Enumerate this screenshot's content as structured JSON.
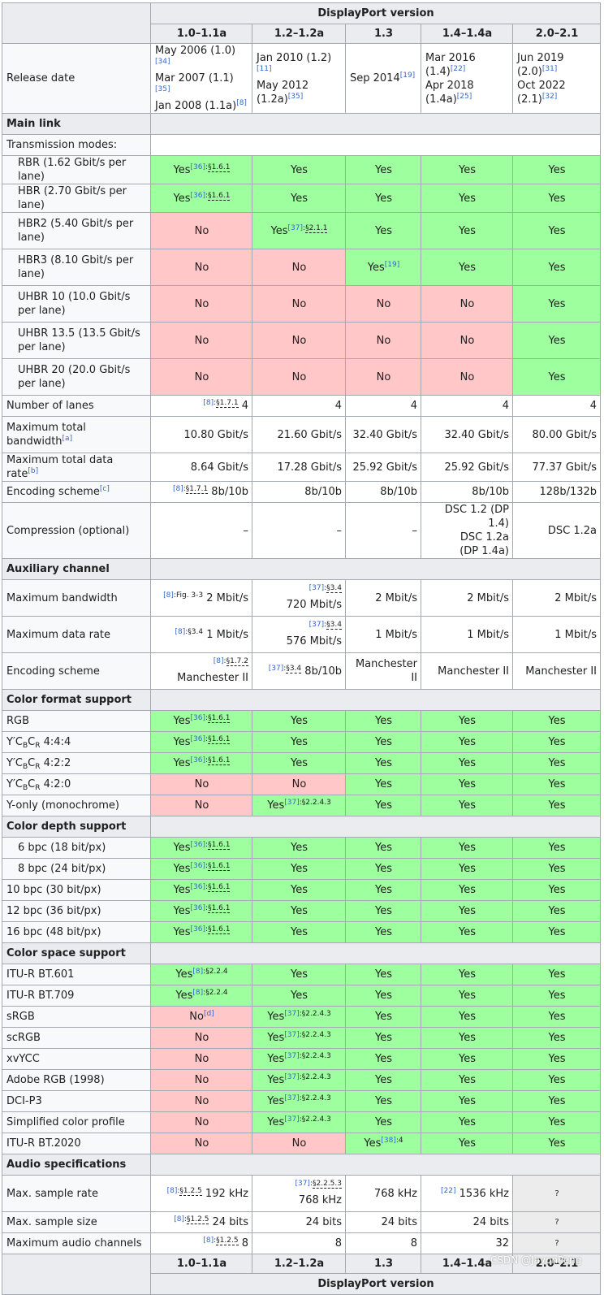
{
  "header": {
    "group": "DisplayPort version",
    "versions": [
      "1.0–1.1a",
      "1.2–1.2a",
      "1.3",
      "1.4–1.4a",
      "2.0–2.1"
    ]
  },
  "release": {
    "label": "Release date",
    "cells": [
      [
        {
          "t": "May 2006 (1.0)",
          "s": "[34]"
        },
        {
          "t": "Mar 2007 (1.1)",
          "s": "[35]"
        },
        {
          "t": "Jan 2008 (1.1a)",
          "s": "[8]"
        }
      ],
      [
        {
          "t": "Jan 2010 (1.2)",
          "s": "[11]"
        },
        {
          "t": "May 2012"
        },
        {
          "t": "(1.2a)",
          "s": "[35]"
        }
      ],
      [
        {
          "t": "Sep 2014",
          "s": "[19]"
        }
      ],
      [
        {
          "t": "Mar 2016"
        },
        {
          "t": "(1.4)",
          "s": "[22]"
        },
        {
          "t": "Apr 2018"
        },
        {
          "t": "(1.4a)",
          "s": "[25]"
        }
      ],
      [
        {
          "t": "Jun 2019"
        },
        {
          "t": "(2.0)",
          "s": "[31]"
        },
        {
          "t": "Oct 2022"
        },
        {
          "t": "(2.1)",
          "s": "[32]"
        }
      ]
    ]
  },
  "sections": {
    "main_link": "Main link",
    "transmission_modes": "Transmission modes:",
    "aux": "Auxiliary channel",
    "color_format": "Color format support",
    "color_depth": "Color depth support",
    "color_space": "Color space support",
    "audio": "Audio specifications"
  },
  "text": {
    "yes": "Yes",
    "no": "No",
    "dash": "–",
    "unknown": "?",
    "ycbcr_prefix": "Y′C",
    "ycbcr_b": "B",
    "ycbcr_c": "C",
    "ycbcr_r": "R",
    "ref8": "[8]",
    "ref36": "[36]",
    "ref37": "[37]",
    "ref38": "[38]",
    "ref19": "[19]",
    "ref22": "[22]",
    "ref_d": "[d]",
    "loc_161": "§1.6.1",
    "loc_211": "§2.1.1",
    "loc_171": "§1.7.1",
    "loc_fig33": "Fig. 3-3",
    "loc_34": "§3.4",
    "loc_172": "§1.7.2",
    "loc_2243": "§2.2.4.3",
    "loc_224": "§2.2.4",
    "loc_4": "4",
    "loc_125": "§1.2.5",
    "loc_2253": "§2.2.5.3",
    "colon": ":"
  },
  "modes": [
    "RBR (1.62 Gbit/s per lane)",
    "HBR (2.70 Gbit/s per lane)",
    "HBR2 (5.40 Gbit/s per lane)",
    "HBR3 (8.10 Gbit/s per lane)",
    "UHBR 10 (10.0 Gbit/s per lane)",
    "UHBR 13.5 (13.5 Gbit/s per lane)",
    "UHBR 20 (20.0 Gbit/s per lane)"
  ],
  "main": {
    "lanes_label": "Number of lanes",
    "lanes": [
      "4",
      "4",
      "4",
      "4",
      "4"
    ],
    "bw_label": "Maximum total bandwidth",
    "bw_note": "[a]",
    "bw": [
      "10.80 Gbit/s",
      "21.60 Gbit/s",
      "32.40 Gbit/s",
      "32.40 Gbit/s",
      "80.00 Gbit/s"
    ],
    "rate_label": "Maximum total data rate",
    "rate_note": "[b]",
    "rate": [
      "8.64 Gbit/s",
      "17.28 Gbit/s",
      "25.92 Gbit/s",
      "25.92 Gbit/s",
      "77.37 Gbit/s"
    ],
    "enc_label": "Encoding scheme",
    "enc_note": "[c]",
    "enc": [
      "8b/10b",
      "8b/10b",
      "8b/10b",
      "8b/10b",
      "128b/132b"
    ],
    "comp_label": "Compression (optional)",
    "comp_14": [
      "DSC 1.2 (DP 1.4)",
      "DSC 1.2a",
      "(DP 1.4a)"
    ],
    "comp_20": "DSC 1.2a"
  },
  "aux": {
    "bw_label": "Maximum bandwidth",
    "bw": [
      "2 Mbit/s",
      "720 Mbit/s",
      "2 Mbit/s",
      "2 Mbit/s",
      "2 Mbit/s"
    ],
    "rate_label": "Maximum data rate",
    "rate": [
      "1 Mbit/s",
      "576 Mbit/s",
      "1 Mbit/s",
      "1 Mbit/s",
      "1 Mbit/s"
    ],
    "enc_label": "Encoding scheme",
    "enc": [
      "Manchester II",
      "8b/10b",
      "Manchester II",
      "Manchester II",
      "Manchester II"
    ]
  },
  "color_format": {
    "rgb": "RGB",
    "c444": "4:4:4",
    "c422": "4:2:2",
    "c420": "4:2:0",
    "mono": "Y-only (monochrome)"
  },
  "color_depth": [
    "6 bpc (18 bit/px)",
    "8 bpc (24 bit/px)",
    "10 bpc (30 bit/px)",
    "12 bpc (36 bit/px)",
    "16 bpc (48 bit/px)"
  ],
  "color_space": [
    "ITU-R BT.601",
    "ITU-R BT.709",
    "sRGB",
    "scRGB",
    "xvYCC",
    "Adobe RGB (1998)",
    "DCI-P3",
    "Simplified color profile",
    "ITU-R BT.2020"
  ],
  "audio": {
    "sr_label": "Max. sample rate",
    "sr": [
      "192 kHz",
      "768 kHz",
      "768 kHz",
      "1536 kHz"
    ],
    "ss_label": "Max. sample size",
    "ss": [
      "24 bits",
      "24 bits",
      "24 bits",
      "24 bits"
    ],
    "ch_label": "Maximum audio channels",
    "ch": [
      "8",
      "8",
      "8",
      "32"
    ]
  },
  "watermark": "CSDN @JavonPeng",
  "colors": {
    "yes_bg": "#9eff9e",
    "no_bg": "#ffc7c7",
    "header_bg": "#eaecf0",
    "border": "#a2a9b1",
    "link": "#3366cc"
  }
}
